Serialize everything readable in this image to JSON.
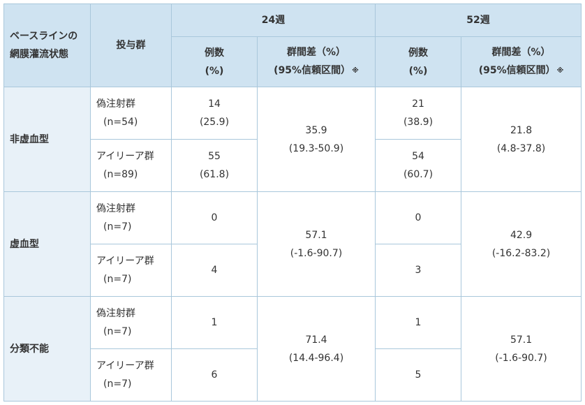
{
  "header": {
    "baseline_line1": "ベースラインの",
    "baseline_line2": "網膜灌流状態",
    "arm_col": "投与群",
    "week24": "24週",
    "week52": "52週",
    "count_line1": "例数",
    "count_line2": "(%)",
    "diff_line1": "群間差（%）",
    "diff_line2": "(95%信頼区間）",
    "note_mark": "※"
  },
  "rows": [
    {
      "category": "非虚血型",
      "arms": [
        {
          "name": "偽注射群",
          "n": "(n=54)",
          "w24_count": "14",
          "w24_pct": "(25.9)",
          "w52_count": "21",
          "w52_pct": "(38.9)"
        },
        {
          "name": "アイリーア群",
          "n": "(n=89)",
          "w24_count": "55",
          "w24_pct": "(61.8)",
          "w52_count": "54",
          "w52_pct": "(60.7)"
        }
      ],
      "w24_diff": "35.9",
      "w24_ci": "(19.3-50.9)",
      "w52_diff": "21.8",
      "w52_ci": "(4.8-37.8)"
    },
    {
      "category": "虚血型",
      "arms": [
        {
          "name": "偽注射群",
          "n": "(n=7)",
          "w24_count": "0",
          "w24_pct": "",
          "w52_count": "0",
          "w52_pct": ""
        },
        {
          "name": "アイリーア群",
          "n": "(n=7)",
          "w24_count": "4",
          "w24_pct": "",
          "w52_count": "3",
          "w52_pct": ""
        }
      ],
      "w24_diff": "57.1",
      "w24_ci": "(-1.6-90.7)",
      "w52_diff": "42.9",
      "w52_ci": "(-16.2-83.2)"
    },
    {
      "category": "分類不能",
      "arms": [
        {
          "name": "偽注射群",
          "n": "(n=7)",
          "w24_count": "1",
          "w24_pct": "",
          "w52_count": "1",
          "w52_pct": ""
        },
        {
          "name": "アイリーア群",
          "n": "(n=7)",
          "w24_count": "6",
          "w24_pct": "",
          "w52_count": "5",
          "w52_pct": ""
        }
      ],
      "w24_diff": "71.4",
      "w24_ci": "(14.4-96.4)",
      "w52_diff": "57.1",
      "w52_ci": "(-1.6-90.7)"
    }
  ]
}
